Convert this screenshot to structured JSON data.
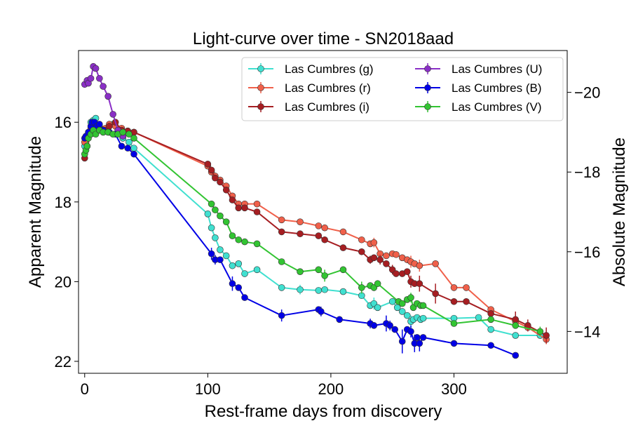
{
  "chart_data": {
    "type": "line",
    "title": "Light-curve over time - SN2018aad",
    "xlabel": "Rest-frame days from discovery",
    "ylabel": "Apparent Magnitude",
    "ylabel_right": "Absolute Magnitude",
    "xlim": [
      -5,
      392
    ],
    "ylim": [
      22.3,
      14.2
    ],
    "y2lim": [
      -12.95,
      -21.05
    ],
    "x_ticks": [
      0,
      100,
      200,
      300
    ],
    "y_ticks": [
      16,
      18,
      20,
      22
    ],
    "y2_ticks": [
      -20,
      -18,
      -16,
      -14
    ],
    "x_tick_labels": [
      "0",
      "100",
      "200",
      "300"
    ],
    "y_tick_labels": [
      "16",
      "18",
      "20",
      "22"
    ],
    "y2_tick_labels": [
      "−20",
      "−18",
      "−16",
      "−14"
    ],
    "grid": false,
    "legend_position": "upper-right",
    "series": [
      {
        "name": "Las Cumbres (g)",
        "color": "#40e0d0",
        "x": [
          0,
          1,
          2,
          3,
          5,
          7,
          9,
          12,
          15,
          19,
          23,
          27,
          31,
          36,
          40,
          100,
          103,
          106,
          110,
          115,
          120,
          125,
          130,
          140,
          160,
          175,
          190,
          195,
          210,
          225,
          232,
          235,
          238,
          250,
          254,
          258,
          262,
          265,
          267,
          270,
          273,
          275,
          300,
          320,
          330,
          350,
          370
        ],
        "y": [
          16.6,
          16.5,
          16.4,
          16.3,
          16.0,
          15.95,
          15.9,
          16.1,
          16.2,
          16.15,
          16.05,
          16.2,
          16.4,
          16.5,
          16.65,
          18.3,
          18.65,
          18.9,
          19.2,
          19.35,
          19.6,
          19.55,
          19.8,
          19.7,
          20.15,
          20.2,
          20.22,
          20.2,
          20.25,
          20.35,
          20.6,
          20.55,
          20.65,
          20.5,
          20.65,
          20.75,
          20.85,
          21.0,
          20.95,
          20.9,
          20.95,
          20.92,
          20.92,
          20.9,
          21.2,
          21.35,
          21.35
        ],
        "err": [
          0,
          0,
          0,
          0,
          0,
          0,
          0,
          0,
          0,
          0,
          0,
          0,
          0,
          0,
          0,
          0,
          0,
          0,
          0,
          0,
          0,
          0,
          0,
          0,
          0,
          0.12,
          0,
          0,
          0,
          0,
          0,
          0.15,
          0,
          0,
          0,
          0,
          0,
          0.15,
          0,
          0,
          0,
          0,
          0,
          0,
          0,
          0,
          0
        ]
      },
      {
        "name": "Las Cumbres (r)",
        "color": "#f0604a",
        "x": [
          0,
          2,
          5,
          8,
          12,
          17,
          20,
          25,
          30,
          35,
          40,
          100,
          103,
          106,
          110,
          115,
          120,
          125,
          130,
          140,
          160,
          175,
          190,
          195,
          210,
          225,
          232,
          235,
          240,
          245,
          250,
          253,
          258,
          262,
          265,
          268,
          272,
          285,
          300,
          310,
          330,
          350,
          360,
          375
        ],
        "y": [
          16.5,
          16.35,
          16.15,
          16.05,
          16.15,
          16.15,
          16.05,
          16.1,
          16.15,
          16.22,
          16.25,
          17.1,
          17.25,
          17.35,
          17.45,
          17.6,
          17.85,
          18.05,
          18.05,
          18.05,
          18.45,
          18.5,
          18.6,
          18.65,
          18.75,
          18.95,
          19.05,
          19.02,
          19.3,
          19.35,
          19.3,
          19.32,
          19.4,
          19.45,
          19.5,
          19.55,
          19.6,
          19.55,
          20.15,
          20.15,
          20.7,
          21.0,
          21.15,
          21.45
        ],
        "err": [
          0,
          0,
          0,
          0,
          0,
          0,
          0,
          0,
          0,
          0,
          0,
          0,
          0,
          0,
          0,
          0,
          0,
          0,
          0,
          0,
          0,
          0,
          0,
          0,
          0,
          0,
          0,
          0.12,
          0,
          0,
          0,
          0,
          0,
          0,
          0.15,
          0,
          0.15,
          0,
          0,
          0,
          0,
          0,
          0,
          0.12
        ]
      },
      {
        "name": "Las Cumbres (i)",
        "color": "#a61e22",
        "x": [
          0,
          2,
          5,
          8,
          12,
          17,
          20,
          25,
          30,
          35,
          40,
          100,
          103,
          106,
          110,
          115,
          120,
          125,
          130,
          140,
          160,
          175,
          190,
          195,
          210,
          225,
          232,
          235,
          240,
          245,
          250,
          253,
          258,
          262,
          265,
          268,
          272,
          285,
          300,
          310,
          330,
          350,
          360,
          375
        ],
        "y": [
          16.9,
          16.6,
          16.3,
          16.1,
          16.2,
          16.2,
          16.1,
          16.0,
          16.2,
          16.22,
          16.25,
          17.05,
          17.2,
          17.4,
          17.5,
          17.7,
          17.95,
          18.15,
          18.15,
          18.25,
          18.75,
          18.8,
          18.85,
          18.95,
          19.15,
          19.25,
          19.45,
          19.4,
          19.45,
          19.55,
          19.7,
          19.8,
          19.8,
          19.75,
          20.0,
          20.05,
          20.05,
          20.3,
          20.5,
          20.5,
          20.8,
          20.95,
          21.1,
          21.35
        ],
        "err": [
          0,
          0,
          0,
          0,
          0,
          0,
          0,
          0,
          0,
          0,
          0,
          0,
          0,
          0,
          0,
          0,
          0,
          0,
          0,
          0,
          0,
          0,
          0,
          0,
          0,
          0,
          0.1,
          0,
          0.12,
          0,
          0.12,
          0,
          0,
          0,
          0.15,
          0,
          0.2,
          0.25,
          0,
          0,
          0,
          0.2,
          0.15,
          0.2
        ]
      },
      {
        "name": "Las Cumbres (U)",
        "color": "#8a2fc6",
        "x": [
          0,
          2,
          3,
          5,
          7,
          9,
          12,
          15,
          19,
          23,
          27,
          31
        ],
        "y": [
          15.05,
          14.95,
          15.02,
          14.9,
          14.6,
          14.65,
          14.9,
          15.1,
          15.35,
          15.8,
          16.2,
          16.35
        ],
        "err": [
          0,
          0,
          0,
          0,
          0,
          0,
          0,
          0,
          0,
          0,
          0,
          0
        ]
      },
      {
        "name": "Las Cumbres (B)",
        "color": "#0000e6",
        "x": [
          0,
          1,
          3,
          5,
          6,
          8,
          10,
          12,
          15,
          20,
          25,
          30,
          35,
          40,
          103,
          106,
          110,
          120,
          125,
          130,
          160,
          190,
          192,
          207,
          232,
          235,
          245,
          248,
          252,
          258,
          262,
          265,
          268,
          270,
          272,
          275,
          300,
          330,
          350
        ],
        "y": [
          16.4,
          16.35,
          16.25,
          16.1,
          16.0,
          16.0,
          16.1,
          16.05,
          16.2,
          16.25,
          16.3,
          16.6,
          16.65,
          16.8,
          19.3,
          19.45,
          19.45,
          20.05,
          20.15,
          20.4,
          20.85,
          20.7,
          20.75,
          20.95,
          21.05,
          21.1,
          21.05,
          21.1,
          21.2,
          21.5,
          21.2,
          21.25,
          21.55,
          21.4,
          21.55,
          21.4,
          21.55,
          21.6,
          21.85
        ],
        "err": [
          0,
          0,
          0,
          0,
          0,
          0,
          0,
          0,
          0,
          0,
          0,
          0,
          0,
          0,
          0.15,
          0.12,
          0,
          0.18,
          0,
          0,
          0.15,
          0,
          0.12,
          0,
          0.12,
          0,
          0.2,
          0.12,
          0,
          0.3,
          0,
          0.15,
          0.22,
          0,
          0.2,
          0,
          0,
          0,
          0
        ]
      },
      {
        "name": "Las Cumbres (V)",
        "color": "#32c432",
        "x": [
          0,
          1,
          2,
          3,
          5,
          7,
          9,
          12,
          15,
          19,
          23,
          27,
          31,
          36,
          40,
          103,
          106,
          110,
          115,
          120,
          125,
          130,
          140,
          160,
          175,
          190,
          195,
          210,
          225,
          232,
          235,
          238,
          255,
          258,
          262,
          265,
          267,
          270,
          273,
          275,
          300,
          330,
          350,
          370
        ],
        "y": [
          16.8,
          16.7,
          16.6,
          16.4,
          16.3,
          16.2,
          16.3,
          16.2,
          16.25,
          16.25,
          16.3,
          16.3,
          16.25,
          16.3,
          16.4,
          18.05,
          18.2,
          18.35,
          18.5,
          18.85,
          18.95,
          19.0,
          19.05,
          19.5,
          19.75,
          19.7,
          19.85,
          19.7,
          20.15,
          20.1,
          20.15,
          20.05,
          20.5,
          20.55,
          20.45,
          20.4,
          20.65,
          20.55,
          20.6,
          20.6,
          21.05,
          20.95,
          21.1,
          21.25
        ],
        "err": [
          0,
          0,
          0,
          0,
          0,
          0,
          0,
          0,
          0,
          0,
          0,
          0,
          0,
          0,
          0,
          0,
          0,
          0,
          0,
          0,
          0,
          0,
          0,
          0,
          0,
          0,
          0.15,
          0,
          0.15,
          0,
          0,
          0,
          0,
          0,
          0,
          0.12,
          0,
          0,
          0,
          0,
          0,
          0,
          0,
          0.12
        ]
      }
    ]
  }
}
